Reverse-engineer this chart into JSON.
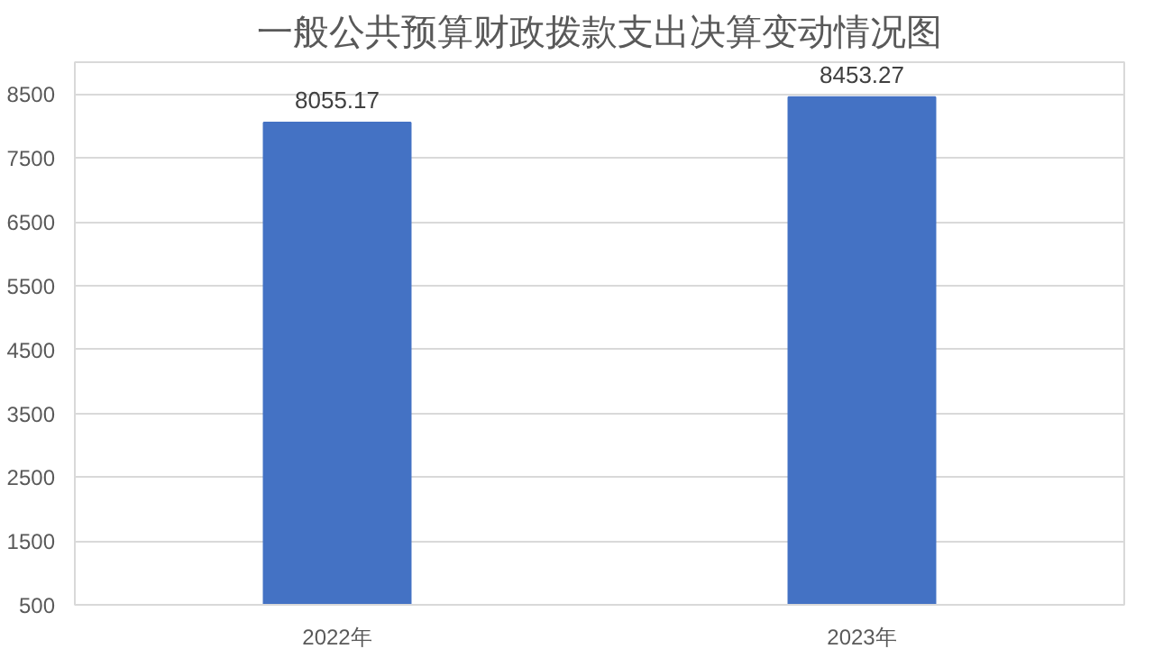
{
  "chart_data": {
    "type": "bar",
    "title": "一般公共预算财政拨款支出决算变动情况图",
    "categories": [
      "2022年",
      "2023年"
    ],
    "values": [
      8055.17,
      8453.27
    ],
    "color": "#4472c4",
    "ylim": [
      500,
      9000
    ],
    "yticks": [
      500,
      1500,
      2500,
      3500,
      4500,
      5500,
      6500,
      7500,
      8500
    ],
    "grid": "y",
    "data_labels": true
  }
}
